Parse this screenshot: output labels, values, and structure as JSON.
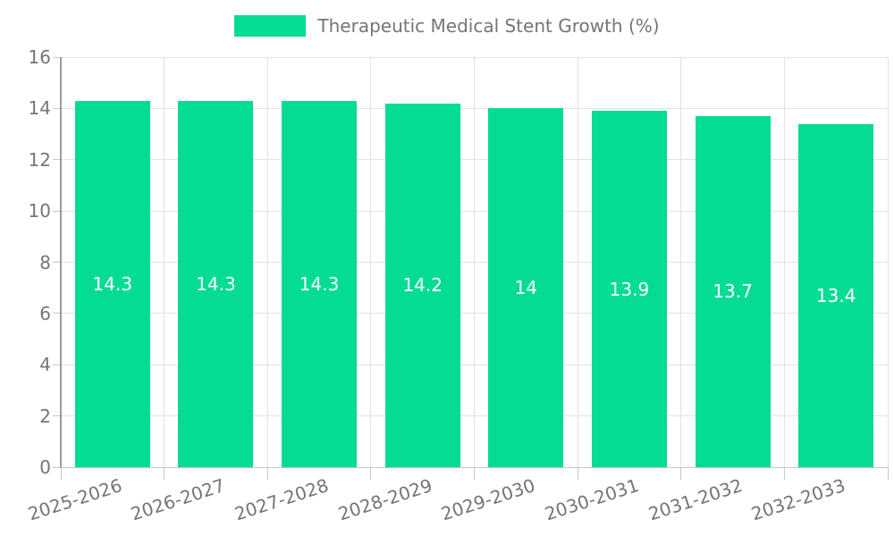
{
  "legend": {
    "label": "Therapeutic Medical Stent Growth (%)"
  },
  "chart_data": {
    "type": "bar",
    "title": "Therapeutic Medical Stent Growth (%)",
    "categories": [
      "2025-2026",
      "2026-2027",
      "2027-2028",
      "2028-2029",
      "2029-2030",
      "2030-2031",
      "2031-2032",
      "2032-2033"
    ],
    "series": [
      {
        "name": "Therapeutic Medical Stent Growth (%)",
        "values": [
          14.3,
          14.3,
          14.3,
          14.2,
          14,
          13.9,
          13.7,
          13.4
        ]
      }
    ],
    "value_labels": [
      "14.3",
      "14.3",
      "14.3",
      "14.2",
      "14",
      "13.9",
      "13.7",
      "13.4"
    ],
    "xlabel": "",
    "ylabel": "",
    "ylim": [
      0,
      16
    ],
    "yticks": [
      0,
      2,
      4,
      6,
      8,
      10,
      12,
      14,
      16
    ],
    "grid": true,
    "legend_position": "top",
    "colors": {
      "bar": "#04DC94",
      "value_label": "#ffffff",
      "grid_line": "#E2E2E2",
      "x_axis_line": "#C6C6C6",
      "y_axis_line": "#9A9A9A",
      "tick_mark": "#C6C6C6",
      "text": "#757575",
      "background": "#ffffff"
    }
  }
}
